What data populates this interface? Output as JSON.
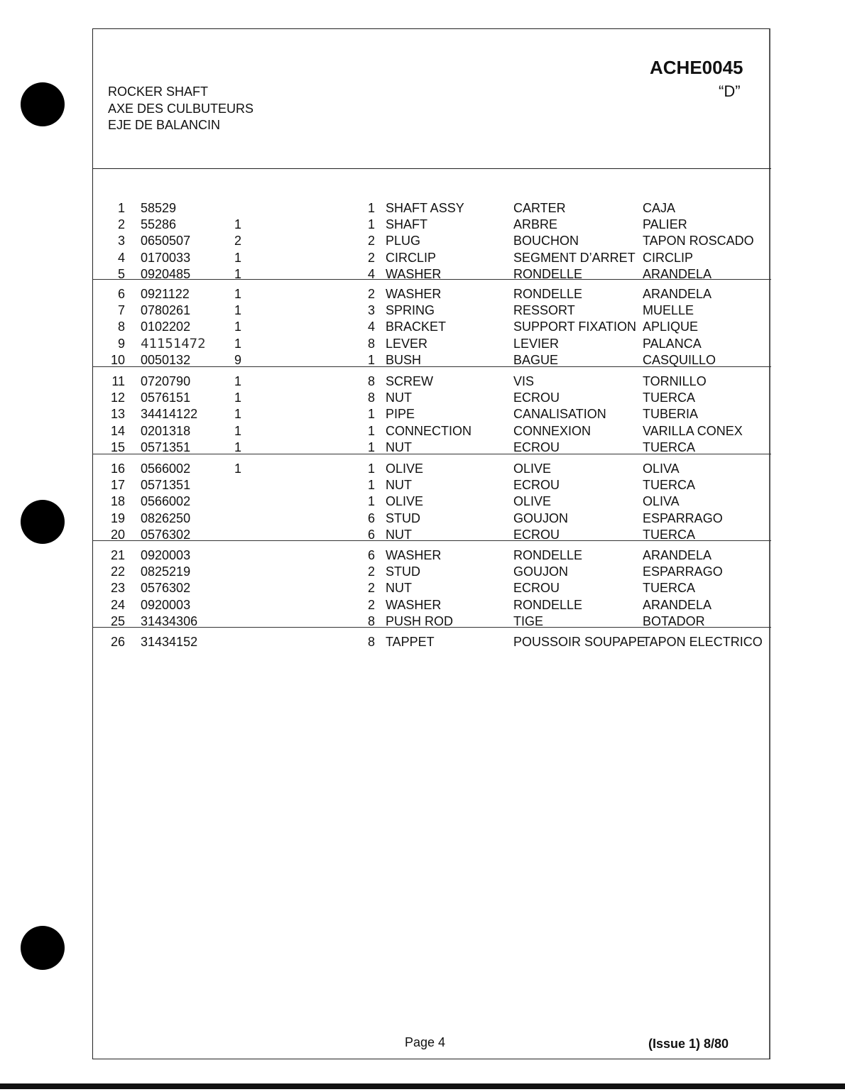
{
  "header": {
    "code": "ACHE0045",
    "variant": "“D”",
    "titles": [
      "ROCKER SHAFT",
      "AXE DES CULBUTEURS",
      "EJE DE BALANCIN"
    ]
  },
  "groups": [
    [
      {
        "num": "1",
        "part": "58529",
        "q1": "",
        "q2": "1",
        "en": "SHAFT ASSY",
        "fr": "CARTER",
        "es": "CAJA"
      },
      {
        "num": "2",
        "part": "55286",
        "q1": "1",
        "q2": "1",
        "en": "SHAFT",
        "fr": "ARBRE",
        "es": "PALIER"
      },
      {
        "num": "3",
        "part": "0650507",
        "q1": "2",
        "q2": "2",
        "en": "PLUG",
        "fr": "BOUCHON",
        "es": "TAPON ROSCADO"
      },
      {
        "num": "4",
        "part": "0170033",
        "q1": "1",
        "q2": "2",
        "en": "CIRCLIP",
        "fr": "SEGMENT D’ARRET",
        "es": "CIRCLIP"
      },
      {
        "num": "5",
        "part": "0920485",
        "q1": "1",
        "q2": "4",
        "en": "WASHER",
        "fr": "RONDELLE",
        "es": "ARANDELA"
      }
    ],
    [
      {
        "num": "6",
        "part": "0921122",
        "q1": "1",
        "q2": "2",
        "en": "WASHER",
        "fr": "RONDELLE",
        "es": "ARANDELA"
      },
      {
        "num": "7",
        "part": "0780261",
        "q1": "1",
        "q2": "3",
        "en": "SPRING",
        "fr": "RESSORT",
        "es": "MUELLE"
      },
      {
        "num": "8",
        "part": "0102202",
        "q1": "1",
        "q2": "4",
        "en": "BRACKET",
        "fr": "SUPPORT FIXATION",
        "es": "APLIQUE"
      },
      {
        "num": "9",
        "part": "41151472",
        "q1": "1",
        "q2": "8",
        "en": "LEVER",
        "fr": "LEVIER",
        "es": "PALANCA",
        "handwritten": true
      },
      {
        "num": "10",
        "part": "0050132",
        "q1": "9",
        "q2": "1",
        "en": "BUSH",
        "fr": "BAGUE",
        "es": "CASQUILLO"
      }
    ],
    [
      {
        "num": "11",
        "part": "0720790",
        "q1": "1",
        "q2": "8",
        "en": "SCREW",
        "fr": "VIS",
        "es": "TORNILLO"
      },
      {
        "num": "12",
        "part": "0576151",
        "q1": "1",
        "q2": "8",
        "en": "NUT",
        "fr": "ECROU",
        "es": "TUERCA"
      },
      {
        "num": "13",
        "part": "34414122",
        "q1": "1",
        "q2": "1",
        "en": "PIPE",
        "fr": "CANALISATION",
        "es": "TUBERIA"
      },
      {
        "num": "14",
        "part": "0201318",
        "q1": "1",
        "q2": "1",
        "en": "CONNECTION",
        "fr": "CONNEXION",
        "es": "VARILLA CONEX"
      },
      {
        "num": "15",
        "part": "0571351",
        "q1": "1",
        "q2": "1",
        "en": "NUT",
        "fr": "ECROU",
        "es": "TUERCA"
      }
    ],
    [
      {
        "num": "16",
        "part": "0566002",
        "q1": "1",
        "q2": "1",
        "en": "OLIVE",
        "fr": "OLIVE",
        "es": "OLIVA"
      },
      {
        "num": "17",
        "part": "0571351",
        "q1": "",
        "q2": "1",
        "en": "NUT",
        "fr": "ECROU",
        "es": "TUERCA"
      },
      {
        "num": "18",
        "part": "0566002",
        "q1": "",
        "q2": "1",
        "en": "OLIVE",
        "fr": "OLIVE",
        "es": "OLIVA"
      },
      {
        "num": "19",
        "part": "0826250",
        "q1": "",
        "q2": "6",
        "en": "STUD",
        "fr": "GOUJON",
        "es": "ESPARRAGO"
      },
      {
        "num": "20",
        "part": "0576302",
        "q1": "",
        "q2": "6",
        "en": "NUT",
        "fr": "ECROU",
        "es": "TUERCA"
      }
    ],
    [
      {
        "num": "21",
        "part": "0920003",
        "q1": "",
        "q2": "6",
        "en": "WASHER",
        "fr": "RONDELLE",
        "es": "ARANDELA"
      },
      {
        "num": "22",
        "part": "0825219",
        "q1": "",
        "q2": "2",
        "en": "STUD",
        "fr": "GOUJON",
        "es": "ESPARRAGO"
      },
      {
        "num": "23",
        "part": "0576302",
        "q1": "",
        "q2": "2",
        "en": "NUT",
        "fr": "ECROU",
        "es": "TUERCA"
      },
      {
        "num": "24",
        "part": "0920003",
        "q1": "",
        "q2": "2",
        "en": "WASHER",
        "fr": "RONDELLE",
        "es": "ARANDELA"
      },
      {
        "num": "25",
        "part": "31434306",
        "q1": "",
        "q2": "8",
        "en": "PUSH ROD",
        "fr": "TIGE",
        "es": "BOTADOR"
      }
    ],
    [
      {
        "num": "26",
        "part": "31434152",
        "q1": "",
        "q2": "8",
        "en": "TAPPET",
        "fr": "POUSSOIR SOUPAPE",
        "es": "TAPON ELECTRICO"
      }
    ]
  ],
  "footer": {
    "page": "Page 4",
    "issue": "(Issue 1) 8/80"
  }
}
